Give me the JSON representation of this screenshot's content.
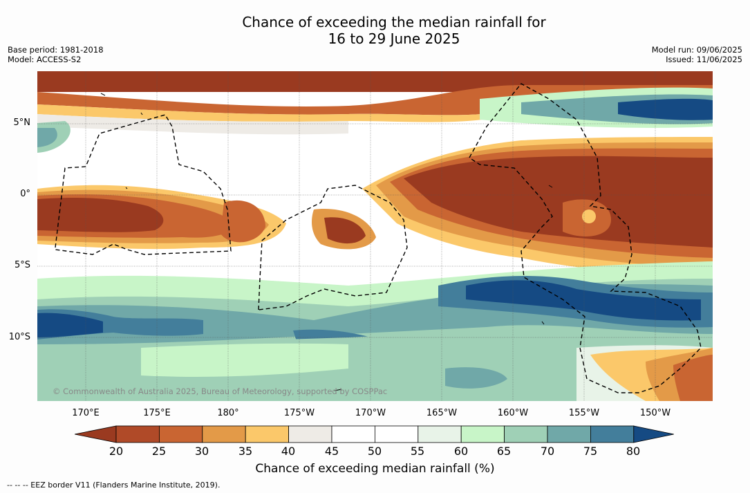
{
  "title_line1": "Chance of exceeding the median rainfall for",
  "title_line2": "16 to 29 June 2025",
  "base_period": "Base period: 1981-2018",
  "model": "Model: ACCESS-S2",
  "model_run": "Model run: 09/06/2025",
  "issued": "Issued: 11/06/2025",
  "copyright": "© Commonwealth of Australia 2025, Bureau of Meteorology, supported by COSPPac",
  "lat_labels": [
    "5°N",
    "0°",
    "5°S",
    "10°S"
  ],
  "lon_labels": [
    "170°E",
    "175°E",
    "180°",
    "175°W",
    "170°W",
    "165°W",
    "160°W",
    "155°W",
    "150°W"
  ],
  "colorbar": {
    "ticks": [
      "20",
      "25",
      "30",
      "35",
      "40",
      "45",
      "50",
      "55",
      "60",
      "65",
      "70",
      "75",
      "80"
    ],
    "colors": [
      "#9a3a20",
      "#b04a28",
      "#c96532",
      "#e39a48",
      "#fbc86a",
      "#eeebe6",
      "#ffffff",
      "#ffffff",
      "#e8f3e8",
      "#c8f5c8",
      "#9fd0b6",
      "#70a8a8",
      "#437e9b",
      "#154a83"
    ],
    "label": "Chance of exceeding median rainfall (%)"
  },
  "legend_note": "--  --  -- EEZ border V11 (Flanders Marine Institute, 2019)."
}
